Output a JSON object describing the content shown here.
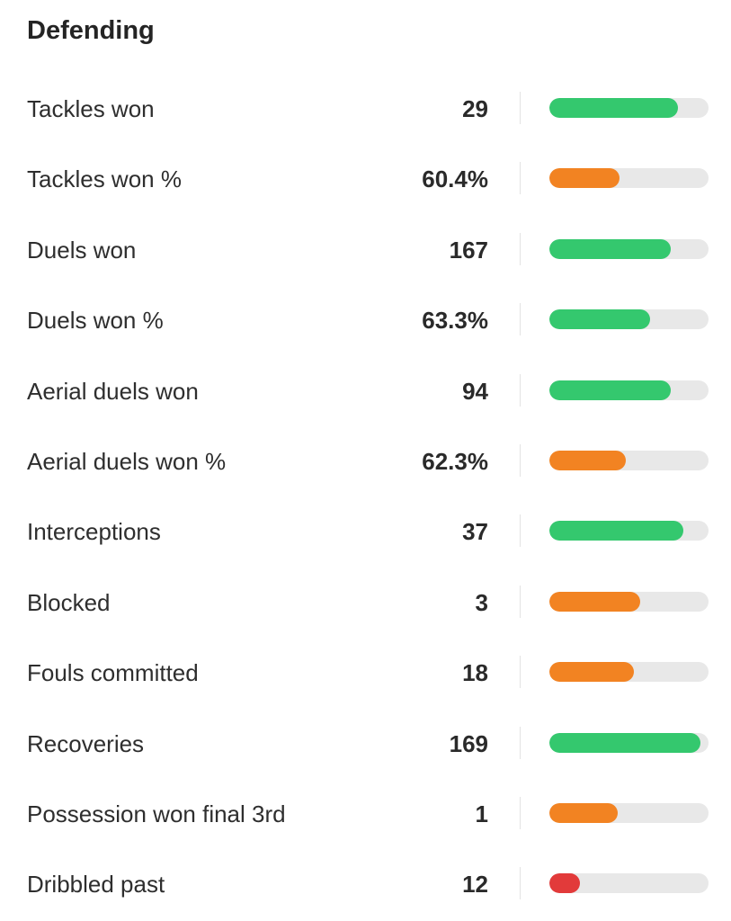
{
  "section": {
    "title": "Defending"
  },
  "colors": {
    "good": "#34c86e",
    "average": "#f28322",
    "poor": "#e23a3a",
    "track": "#e8e8e8"
  },
  "stats": [
    {
      "label": "Tackles won",
      "value": "29",
      "percentile": 0.81,
      "rating": "good"
    },
    {
      "label": "Tackles won %",
      "value": "60.4%",
      "percentile": 0.44,
      "rating": "average"
    },
    {
      "label": "Duels won",
      "value": "167",
      "percentile": 0.76,
      "rating": "good"
    },
    {
      "label": "Duels won %",
      "value": "63.3%",
      "percentile": 0.63,
      "rating": "good"
    },
    {
      "label": "Aerial duels won",
      "value": "94",
      "percentile": 0.76,
      "rating": "good"
    },
    {
      "label": "Aerial duels won %",
      "value": "62.3%",
      "percentile": 0.48,
      "rating": "average"
    },
    {
      "label": "Interceptions",
      "value": "37",
      "percentile": 0.84,
      "rating": "good"
    },
    {
      "label": "Blocked",
      "value": "3",
      "percentile": 0.57,
      "rating": "average"
    },
    {
      "label": "Fouls committed",
      "value": "18",
      "percentile": 0.53,
      "rating": "average"
    },
    {
      "label": "Recoveries",
      "value": "169",
      "percentile": 0.95,
      "rating": "good"
    },
    {
      "label": "Possession won final 3rd",
      "value": "1",
      "percentile": 0.43,
      "rating": "average"
    },
    {
      "label": "Dribbled past",
      "value": "12",
      "percentile": 0.19,
      "rating": "poor"
    }
  ]
}
